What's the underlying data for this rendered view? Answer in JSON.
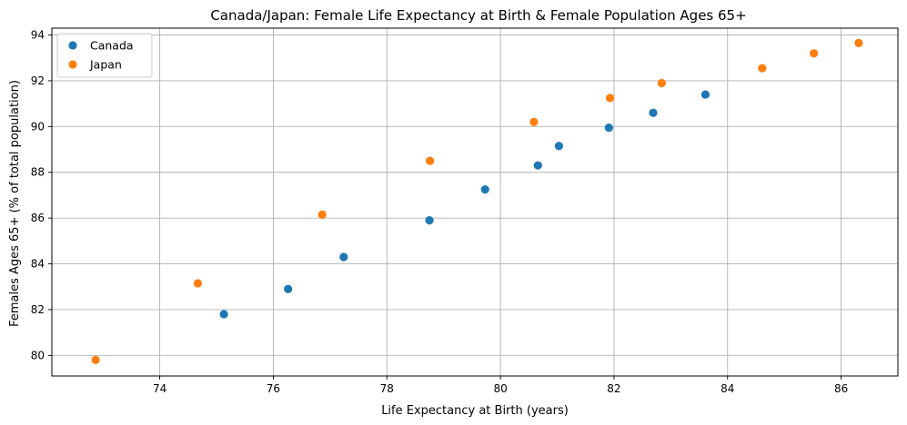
{
  "chart_data": {
    "type": "scatter",
    "title": "Canada/Japan: Female Life Expectancy at Birth & Female Population Ages 65+",
    "xlabel": "Life Expectancy at Birth (years)",
    "ylabel": "Females Ages 65+ (% of total population)",
    "xlim": [
      72.1,
      87.0
    ],
    "ylim": [
      79.1,
      94.3
    ],
    "xticks": [
      74,
      76,
      78,
      80,
      82,
      84,
      86
    ],
    "yticks": [
      80,
      82,
      84,
      86,
      88,
      90,
      92,
      94
    ],
    "grid": true,
    "legend_position": "top-left",
    "series": [
      {
        "name": "Canada",
        "color": "#1f77b4",
        "points": [
          {
            "x": 75.13,
            "y": 81.8
          },
          {
            "x": 76.26,
            "y": 82.9
          },
          {
            "x": 77.24,
            "y": 84.3
          },
          {
            "x": 78.75,
            "y": 85.9
          },
          {
            "x": 79.73,
            "y": 87.25
          },
          {
            "x": 80.66,
            "y": 88.3
          },
          {
            "x": 81.03,
            "y": 89.15
          },
          {
            "x": 81.91,
            "y": 89.95
          },
          {
            "x": 82.69,
            "y": 90.6
          },
          {
            "x": 83.61,
            "y": 91.4
          }
        ]
      },
      {
        "name": "Japan",
        "color": "#ff7f0e",
        "points": [
          {
            "x": 72.87,
            "y": 79.8
          },
          {
            "x": 74.67,
            "y": 83.15
          },
          {
            "x": 76.86,
            "y": 86.15
          },
          {
            "x": 78.76,
            "y": 88.5
          },
          {
            "x": 80.59,
            "y": 90.2
          },
          {
            "x": 81.93,
            "y": 91.25
          },
          {
            "x": 82.84,
            "y": 91.9
          },
          {
            "x": 84.61,
            "y": 92.55
          },
          {
            "x": 85.52,
            "y": 93.2
          },
          {
            "x": 86.31,
            "y": 93.65
          }
        ]
      }
    ]
  }
}
